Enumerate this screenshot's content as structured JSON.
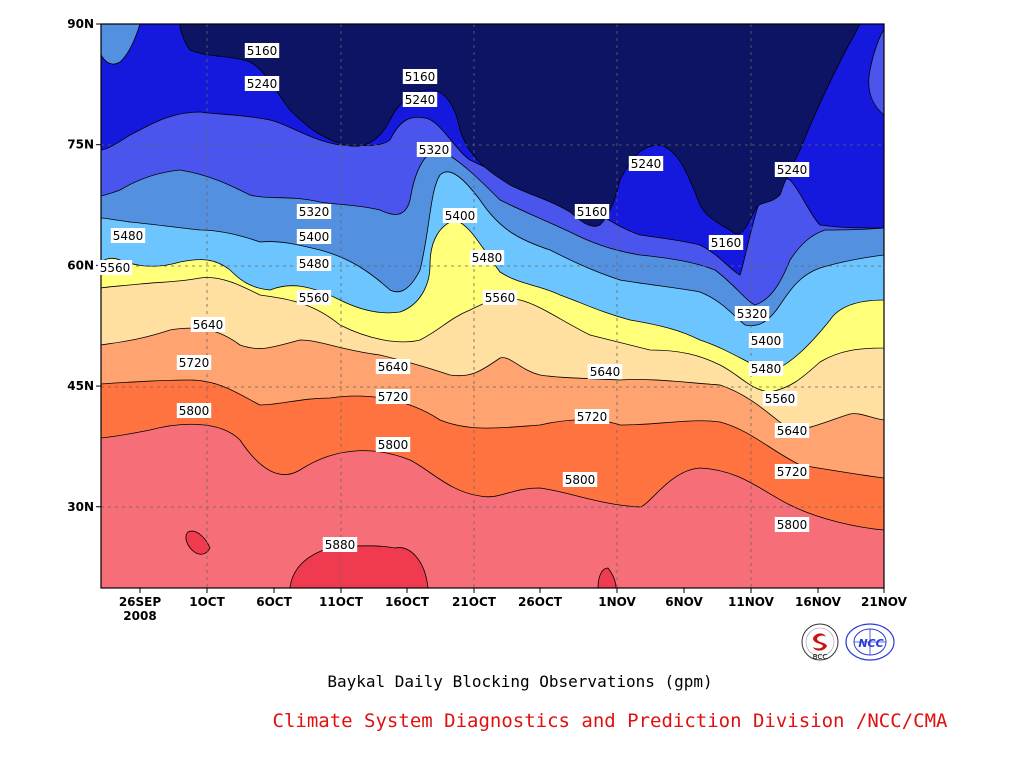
{
  "chart_data": {
    "type": "contour",
    "title": "Baykal Daily Blocking Observations (gpm)",
    "x_tick_labels": [
      "26SEP",
      "1OCT",
      "6OCT",
      "11OCT",
      "16OCT",
      "21OCT",
      "26OCT",
      "1NOV",
      "6NOV",
      "11NOV",
      "16NOV",
      "21NOV"
    ],
    "x_tick_sublabel": "2008",
    "y_tick_labels": [
      "30N",
      "45N",
      "60N",
      "75N",
      "90N"
    ],
    "ylim": [
      20,
      90
    ],
    "grid": "dashed",
    "levels": [
      5160,
      5240,
      5320,
      5400,
      5480,
      5560,
      5640,
      5720,
      5800,
      5880
    ],
    "level_colors": [
      "#0e1464",
      "#1518dd",
      "#4a55ee",
      "#5490e0",
      "#6cc5ff",
      "#ffff7a",
      "#ffe0a0",
      "#ffa470",
      "#ff7340",
      "#f56e78",
      "#f03a50"
    ],
    "contour_labels": [
      "5160",
      "5240",
      "5160",
      "5240",
      "5320",
      "5160",
      "5240",
      "5160",
      "5240",
      "5320",
      "5400",
      "5480",
      "5560",
      "5400",
      "5480",
      "5560",
      "5320",
      "5400",
      "5480",
      "5560",
      "5640",
      "5720",
      "5800",
      "5640",
      "5720",
      "5800",
      "5640",
      "5720",
      "5800",
      "5640",
      "5720",
      "5800",
      "5880"
    ],
    "contour_label_font_note": "",
    "logos": [
      "BCC",
      "NCC"
    ]
  },
  "credit": "Climate System Diagnostics and Prediction Division /NCC/CMA"
}
